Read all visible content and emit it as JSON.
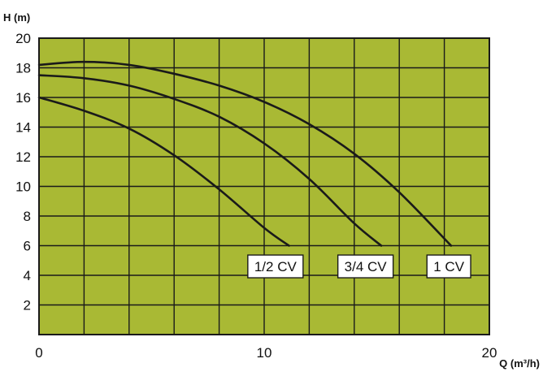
{
  "chart_data": {
    "type": "line",
    "title": "",
    "ylabel": "H (m)",
    "xlabel": "Q (m³/h)",
    "xlim": [
      0,
      20
    ],
    "ylim": [
      0,
      20
    ],
    "x_tick_labels": [
      {
        "value": 0,
        "label": "0"
      },
      {
        "value": 10,
        "label": "10"
      },
      {
        "value": 20,
        "label": "20"
      }
    ],
    "y_tick_labels": [
      {
        "value": 2,
        "label": "2"
      },
      {
        "value": 4,
        "label": "4"
      },
      {
        "value": 6,
        "label": "6"
      },
      {
        "value": 8,
        "label": "8"
      },
      {
        "value": 10,
        "label": "10"
      },
      {
        "value": 12,
        "label": "12"
      },
      {
        "value": 14,
        "label": "14"
      },
      {
        "value": 16,
        "label": "16"
      },
      {
        "value": 18,
        "label": "18"
      },
      {
        "value": 20,
        "label": "20"
      }
    ],
    "x_grid_step": 2,
    "y_grid_step": 2,
    "grid": true,
    "colors": {
      "plot_background": "#a9b934",
      "grid": "#1a1a1a",
      "curve": "#1a1a1a",
      "label_box": "#ffffff"
    },
    "series": [
      {
        "name": "1/2 CV",
        "points": [
          [
            0,
            16.0
          ],
          [
            2,
            15.1
          ],
          [
            4,
            13.9
          ],
          [
            6,
            12.1
          ],
          [
            8,
            9.8
          ],
          [
            10,
            7.2
          ],
          [
            11.1,
            6.0
          ]
        ],
        "label_at": [
          10.5,
          4.6
        ]
      },
      {
        "name": "3/4 CV",
        "points": [
          [
            0,
            17.5
          ],
          [
            2,
            17.3
          ],
          [
            4,
            16.8
          ],
          [
            6,
            15.9
          ],
          [
            8,
            14.7
          ],
          [
            10,
            12.9
          ],
          [
            12,
            10.5
          ],
          [
            14,
            7.5
          ],
          [
            15.2,
            6.0
          ]
        ],
        "label_at": [
          14.5,
          4.6
        ]
      },
      {
        "name": "1 CV",
        "points": [
          [
            0,
            18.2
          ],
          [
            2,
            18.4
          ],
          [
            4,
            18.2
          ],
          [
            6,
            17.6
          ],
          [
            8,
            16.8
          ],
          [
            10,
            15.7
          ],
          [
            12,
            14.2
          ],
          [
            14,
            12.2
          ],
          [
            16,
            9.6
          ],
          [
            18.3,
            6.0
          ]
        ],
        "label_at": [
          18.2,
          4.6
        ]
      }
    ]
  }
}
